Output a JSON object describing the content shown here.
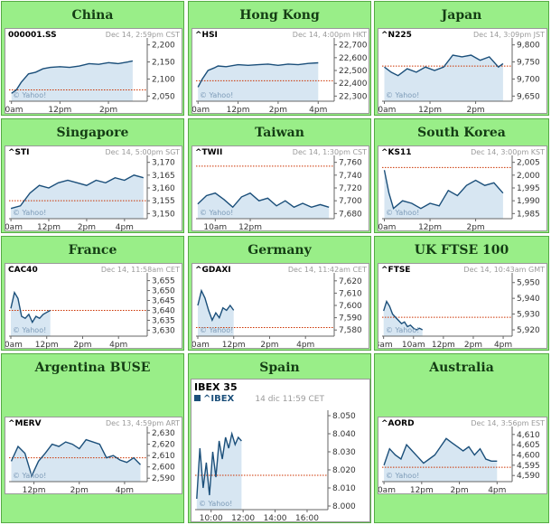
{
  "chart_data": [
    {
      "type": "line",
      "region": "China",
      "symbol": "000001.SS",
      "timestamp": "Dec 14, 2:59pm CST",
      "y_ticks": [
        "2,200",
        "2,150",
        "2,100",
        "2,050"
      ],
      "y_tick_values": [
        2200,
        2150,
        2100,
        2050
      ],
      "ylim": [
        2035,
        2215
      ],
      "x_ticks": [
        "10am",
        "12pm",
        "2pm"
      ],
      "x_tick_values": [
        0,
        2,
        4
      ],
      "xlim": [
        -0.1,
        5.6
      ],
      "reference": 2068,
      "watermark": "© Yahoo!",
      "x": [
        0,
        0.2,
        0.4,
        0.7,
        1.0,
        1.3,
        1.6,
        2.0,
        2.4,
        2.8,
        3.2,
        3.6,
        4.0,
        4.4,
        4.8,
        5.0
      ],
      "y": [
        2058,
        2068,
        2090,
        2115,
        2120,
        2130,
        2134,
        2136,
        2134,
        2138,
        2145,
        2143,
        2148,
        2145,
        2150,
        2153
      ]
    },
    {
      "type": "line",
      "region": "Hong Kong",
      "symbol": "^HSI",
      "timestamp": "Dec 14, 4:00pm HKT",
      "y_ticks": [
        "22,700",
        "22,600",
        "22,500",
        "22,400",
        "22,300"
      ],
      "y_tick_values": [
        22700,
        22600,
        22500,
        22400,
        22300
      ],
      "ylim": [
        22260,
        22740
      ],
      "x_ticks": [
        "10am",
        "12pm",
        "2pm",
        "4pm"
      ],
      "x_tick_values": [
        0,
        2,
        4,
        6
      ],
      "xlim": [
        -0.1,
        6.8
      ],
      "reference": 22420,
      "watermark": "© Yahoo!",
      "x": [
        0,
        0.2,
        0.5,
        0.8,
        1.0,
        1.4,
        2.0,
        2.5,
        3.0,
        3.5,
        4.0,
        4.5,
        5.0,
        5.5,
        6.0
      ],
      "y": [
        22370,
        22430,
        22500,
        22520,
        22535,
        22530,
        22545,
        22540,
        22545,
        22550,
        22540,
        22550,
        22545,
        22555,
        22560
      ]
    },
    {
      "type": "line",
      "region": "Japan",
      "symbol": "^N225",
      "timestamp": "Dec 14, 3:09pm JST",
      "y_ticks": [
        "9,800",
        "9,750",
        "9,700",
        "9,650"
      ],
      "y_tick_values": [
        9800,
        9750,
        9700,
        9650
      ],
      "ylim": [
        9635,
        9815
      ],
      "x_ticks": [
        "10am",
        "12pm",
        "2pm"
      ],
      "x_tick_values": [
        0,
        2,
        4
      ],
      "xlim": [
        -0.1,
        5.6
      ],
      "reference": 9738,
      "watermark": "© Yahoo!",
      "x": [
        0,
        0.3,
        0.6,
        1.0,
        1.4,
        1.8,
        2.2,
        2.6,
        3.0,
        3.4,
        3.8,
        4.2,
        4.6,
        5.0,
        5.2
      ],
      "y": [
        9735,
        9720,
        9710,
        9730,
        9720,
        9735,
        9725,
        9735,
        9770,
        9765,
        9770,
        9755,
        9765,
        9735,
        9745
      ]
    },
    {
      "type": "line",
      "region": "Singapore",
      "symbol": "^STI",
      "timestamp": "Dec 14, 5:00pm SGT",
      "y_ticks": [
        "3,170",
        "3,165",
        "3,160",
        "3,155",
        "3,150"
      ],
      "y_tick_values": [
        3170,
        3165,
        3160,
        3155,
        3150
      ],
      "ylim": [
        3148,
        3172
      ],
      "x_ticks": [
        "10am",
        "12pm",
        "2pm",
        "4pm"
      ],
      "x_tick_values": [
        0,
        2,
        4,
        6
      ],
      "xlim": [
        -0.1,
        7.2
      ],
      "reference": 3155,
      "watermark": "© Yahoo!",
      "x": [
        0,
        0.5,
        1.0,
        1.5,
        2.0,
        2.5,
        3.0,
        3.5,
        4.0,
        4.5,
        5.0,
        5.5,
        6.0,
        6.5,
        7.0
      ],
      "y": [
        3152,
        3153,
        3158,
        3161,
        3160,
        3162,
        3163,
        3162,
        3161,
        3163,
        3162,
        3164,
        3163,
        3165,
        3164
      ]
    },
    {
      "type": "line",
      "region": "Taiwan",
      "symbol": "^TWII",
      "timestamp": "Dec 14, 1:30pm CST",
      "y_ticks": [
        "7,760",
        "7,740",
        "7,720",
        "7,700",
        "7,680"
      ],
      "y_tick_values": [
        7760,
        7740,
        7720,
        7700,
        7680
      ],
      "ylim": [
        7672,
        7768
      ],
      "x_ticks": [
        "10am",
        "12pm"
      ],
      "x_tick_values": [
        1,
        3
      ],
      "xlim": [
        -0.1,
        7.8
      ],
      "reference": 7754,
      "watermark": "© Yahoo!",
      "x": [
        0,
        0.5,
        1.0,
        1.5,
        2.0,
        2.5,
        3.0,
        3.5,
        4.0,
        4.5,
        5.0,
        5.5,
        6.0,
        6.5,
        7.0,
        7.5
      ],
      "y": [
        7695,
        7708,
        7712,
        7702,
        7690,
        7706,
        7712,
        7700,
        7704,
        7692,
        7700,
        7690,
        7696,
        7690,
        7694,
        7690
      ]
    },
    {
      "type": "line",
      "region": "South Korea",
      "symbol": "^KS11",
      "timestamp": "Dec 14, 3:00pm KST",
      "y_ticks": [
        "2,005",
        "2,000",
        "1,995",
        "1,990",
        "1,985"
      ],
      "y_tick_values": [
        2005,
        2000,
        1995,
        1990,
        1985
      ],
      "ylim": [
        1983,
        2007
      ],
      "x_ticks": [
        "10am",
        "12pm",
        "2pm"
      ],
      "x_tick_values": [
        0,
        2,
        4
      ],
      "xlim": [
        -0.1,
        5.6
      ],
      "reference": 2003,
      "watermark": "© Yahoo!",
      "x": [
        0,
        0.2,
        0.4,
        0.8,
        1.2,
        1.6,
        2.0,
        2.4,
        2.8,
        3.2,
        3.6,
        4.0,
        4.4,
        4.8,
        5.2
      ],
      "y": [
        2002,
        1993,
        1987,
        1990,
        1989,
        1987,
        1989,
        1988,
        1994,
        1992,
        1996,
        1998,
        1996,
        1997,
        1993
      ]
    },
    {
      "type": "line",
      "region": "France",
      "symbol": "CAC40",
      "timestamp": "Dec 14, 11:58am CET",
      "y_ticks": [
        "3,655",
        "3,650",
        "3,645",
        "3,640",
        "3,635",
        "3,630"
      ],
      "y_tick_values": [
        3655,
        3650,
        3645,
        3640,
        3635,
        3630
      ],
      "ylim": [
        3627,
        3658
      ],
      "x_ticks": [
        "10am",
        "12pm",
        "2pm",
        "4pm"
      ],
      "x_tick_values": [
        0,
        2,
        4,
        6
      ],
      "xlim": [
        -0.1,
        7.6
      ],
      "reference": 3640,
      "watermark": "© Yahoo!",
      "x": [
        0,
        0.2,
        0.4,
        0.6,
        0.8,
        1.0,
        1.2,
        1.4,
        1.6,
        1.8,
        2.0,
        2.2
      ],
      "y": [
        3641,
        3649,
        3646,
        3637,
        3636,
        3638,
        3634,
        3637,
        3636,
        3638,
        3639,
        3640
      ]
    },
    {
      "type": "line",
      "region": "Germany",
      "symbol": "^GDAXI",
      "timestamp": "Dec 14, 11:42am CET",
      "y_ticks": [
        "7,620",
        "7,610",
        "7,600",
        "7,590",
        "7,580"
      ],
      "y_tick_values": [
        7620,
        7610,
        7600,
        7590,
        7580
      ],
      "ylim": [
        7575,
        7625
      ],
      "x_ticks": [
        "10am",
        "12pm",
        "2pm",
        "4pm"
      ],
      "x_tick_values": [
        0,
        2,
        4,
        6
      ],
      "xlim": [
        -0.1,
        7.6
      ],
      "reference": 7582,
      "watermark": "© Yahoo!",
      "x": [
        0,
        0.2,
        0.4,
        0.6,
        0.8,
        1.0,
        1.2,
        1.4,
        1.6,
        1.8,
        2.0
      ],
      "y": [
        7600,
        7612,
        7606,
        7596,
        7588,
        7594,
        7590,
        7598,
        7596,
        7600,
        7596
      ]
    },
    {
      "type": "line",
      "region": "UK FTSE 100",
      "symbol": "^FTSE",
      "timestamp": "Dec 14, 10:43am GMT",
      "y_ticks": [
        "5,950",
        "5,940",
        "5,930",
        "5,920"
      ],
      "y_tick_values": [
        5950,
        5940,
        5930,
        5920
      ],
      "ylim": [
        5916,
        5955
      ],
      "x_ticks": [
        "8am",
        "10am",
        "12pm",
        "2pm",
        "4pm"
      ],
      "x_tick_values": [
        0,
        2,
        4,
        6,
        8
      ],
      "xlim": [
        -0.1,
        8.6
      ],
      "reference": 5928,
      "watermark": "© Yahoo!",
      "x": [
        0,
        0.2,
        0.4,
        0.6,
        0.8,
        1.0,
        1.2,
        1.4,
        1.6,
        1.8,
        2.0,
        2.2,
        2.4,
        2.6
      ],
      "y": [
        5932,
        5938,
        5935,
        5930,
        5928,
        5926,
        5924,
        5925,
        5922,
        5923,
        5921,
        5920,
        5921,
        5920
      ]
    },
    {
      "type": "line",
      "region": "Argentina BUSE",
      "symbol": "^MERV",
      "timestamp": "Dec 13, 4:59pm ART",
      "y_ticks": [
        "2,630",
        "2,620",
        "2,610",
        "2,600",
        "2,590"
      ],
      "y_tick_values": [
        2630,
        2620,
        2610,
        2600,
        2590
      ],
      "ylim": [
        2587,
        2634
      ],
      "x_ticks": [
        "12pm",
        "2pm",
        "4pm"
      ],
      "x_tick_values": [
        1,
        3,
        5
      ],
      "xlim": [
        -0.1,
        6.0
      ],
      "reference": 2608,
      "watermark": "© Yahoo!",
      "x": [
        0,
        0.3,
        0.6,
        0.9,
        1.2,
        1.5,
        1.8,
        2.1,
        2.4,
        2.7,
        3.0,
        3.3,
        3.6,
        3.9,
        4.2,
        4.5,
        4.8,
        5.1,
        5.4,
        5.7
      ],
      "y": [
        2605,
        2618,
        2612,
        2592,
        2605,
        2612,
        2620,
        2618,
        2622,
        2620,
        2616,
        2624,
        2622,
        2620,
        2608,
        2610,
        2606,
        2604,
        2608,
        2602
      ]
    },
    {
      "type": "line",
      "region": "Spain",
      "title": "IBEX 35",
      "symbol": "^IBEX",
      "timestamp": "14 dic 11:59 CET",
      "y_ticks": [
        "8.050",
        "8.040",
        "8.030",
        "8.020",
        "8.010",
        "8.000"
      ],
      "y_tick_values": [
        8050,
        8040,
        8030,
        8020,
        8010,
        8000
      ],
      "ylim": [
        7998,
        8052
      ],
      "x_ticks": [
        "10:00",
        "12:00",
        "14:00",
        "16:00"
      ],
      "x_tick_values": [
        1,
        3,
        5,
        7
      ],
      "xlim": [
        0,
        8.3
      ],
      "reference": 8017,
      "watermark": "© Yahoo!",
      "x": [
        0.1,
        0.3,
        0.5,
        0.7,
        0.9,
        1.1,
        1.3,
        1.5,
        1.7,
        1.9,
        2.1,
        2.3,
        2.5,
        2.7,
        2.9
      ],
      "y": [
        8004,
        8032,
        8010,
        8024,
        8006,
        8030,
        8016,
        8036,
        8026,
        8038,
        8032,
        8040,
        8034,
        8038,
        8036
      ]
    },
    {
      "type": "line",
      "region": "Australia",
      "symbol": "^AORD",
      "timestamp": "Dec 14, 3:56pm EST",
      "y_ticks": [
        "4,610",
        "4,605",
        "4,600",
        "4,595",
        "4,590"
      ],
      "y_tick_values": [
        4610,
        4605,
        4600,
        4595,
        4590
      ],
      "ylim": [
        4587,
        4613
      ],
      "x_ticks": [
        "10am",
        "12pm",
        "2pm",
        "4pm"
      ],
      "x_tick_values": [
        0,
        2,
        4,
        6
      ],
      "xlim": [
        -0.1,
        6.8
      ],
      "reference": 4594,
      "watermark": "© Yahoo!",
      "x": [
        0,
        0.3,
        0.6,
        0.9,
        1.2,
        1.5,
        1.8,
        2.1,
        2.4,
        2.7,
        3.0,
        3.3,
        3.6,
        3.9,
        4.2,
        4.5,
        4.8,
        5.1,
        5.4,
        5.7,
        6.0
      ],
      "y": [
        4595,
        4603,
        4600,
        4598,
        4605,
        4602,
        4599,
        4596,
        4598,
        4600,
        4604,
        4608,
        4606,
        4604,
        4602,
        4604,
        4600,
        4603,
        4598,
        4597,
        4597
      ]
    }
  ]
}
